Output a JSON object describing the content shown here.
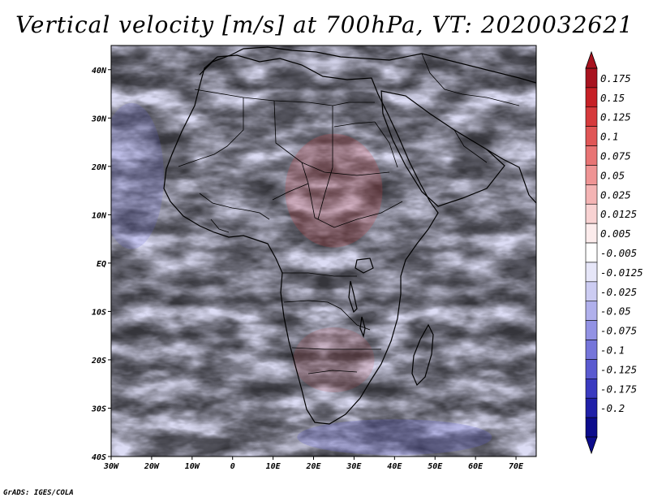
{
  "title": "Vertical velocity [m/s] at 700hPa, VT: 2020032621",
  "footer": "GrADS: IGES/COLA",
  "map": {
    "lon_range": [
      -30,
      75
    ],
    "lat_range": [
      -40,
      45
    ],
    "lon_ticks": [
      "30W",
      "20W",
      "10W",
      "0",
      "10E",
      "20E",
      "30E",
      "40E",
      "50E",
      "60E",
      "70E"
    ],
    "lat_ticks": [
      "40N",
      "30N",
      "20N",
      "10N",
      "EQ",
      "10S",
      "20S",
      "30S",
      "40S"
    ]
  },
  "colorbar": {
    "labels": [
      "0.175",
      "0.15",
      "0.125",
      "0.1",
      "0.075",
      "0.05",
      "0.025",
      "0.0125",
      "0.005",
      "-0.005",
      "-0.0125",
      "-0.025",
      "-0.05",
      "-0.075",
      "-0.1",
      "-0.125",
      "-0.175",
      "-0.2"
    ],
    "colors": [
      "#a8131f",
      "#c62026",
      "#d63a3c",
      "#e05656",
      "#e87474",
      "#ef9494",
      "#f4b4b4",
      "#f8d2d2",
      "#fcecec",
      "#ffffff",
      "#e6e6f8",
      "#ccccf2",
      "#b0b0ec",
      "#9292e4",
      "#7575da",
      "#5a5ad0",
      "#3a3ac0",
      "#2020a8",
      "#0c0c8c"
    ]
  },
  "colors": {
    "positive": "#d03a3a",
    "negative": "#5a5ad8",
    "background": "#ffffff"
  }
}
